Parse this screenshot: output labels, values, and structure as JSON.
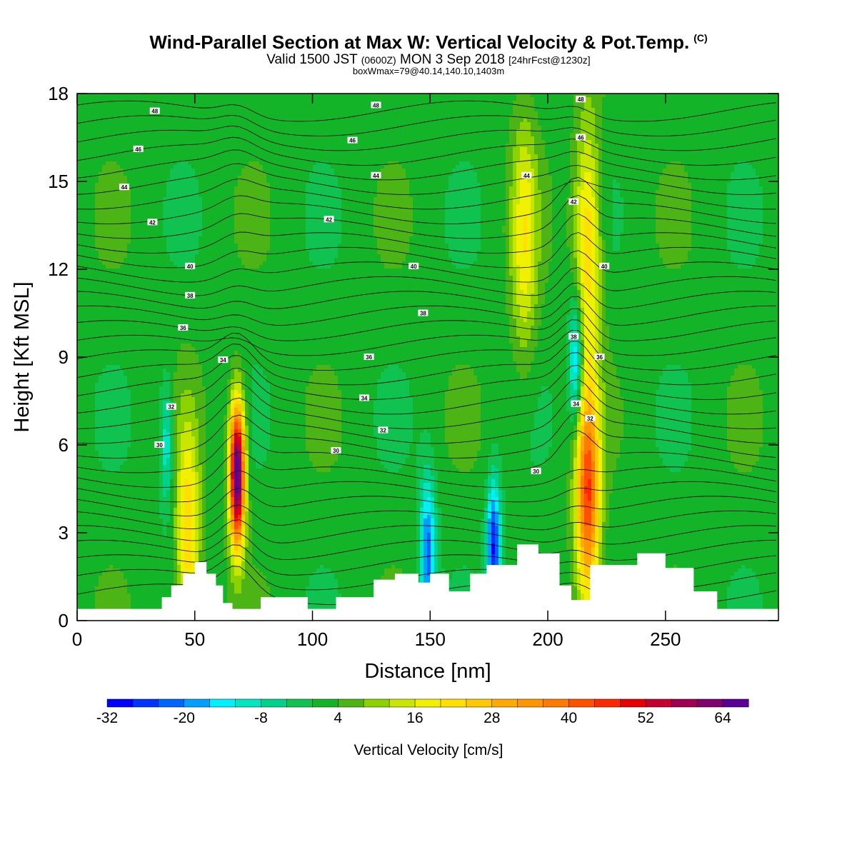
{
  "header": {
    "title": "Wind-Parallel Section at Max W: Vertical Velocity & Pot.Temp.",
    "copyright": "(C)",
    "valid_prefix": "Valid 1500 JST",
    "valid_utc": "(0600Z)",
    "valid_date": "MON 3 Sep 2018",
    "forecast": "[24hrFcst@1230z]",
    "box_info": "boxWmax=79@40.14,140.10,1403m"
  },
  "chart_data": {
    "type": "heatmap",
    "xlabel": "Distance [nm]",
    "ylabel": "Height [Kft MSL]",
    "xlim": [
      0,
      298
    ],
    "ylim": [
      0,
      18
    ],
    "x_ticks": [
      "0",
      "50",
      "100",
      "150",
      "200",
      "250"
    ],
    "y_ticks": [
      "0",
      "3",
      "6",
      "9",
      "12",
      "15",
      "18"
    ],
    "colorbar": {
      "label": "Vertical Velocity [cm/s]",
      "levels": [
        -32,
        -28,
        -24,
        -20,
        -16,
        -12,
        -8,
        -4,
        0,
        4,
        8,
        12,
        16,
        20,
        24,
        28,
        32,
        36,
        40,
        44,
        48,
        52,
        56,
        60,
        64,
        68
      ],
      "tick_labels": [
        "-32",
        "-20",
        "-8",
        "4",
        "16",
        "28",
        "40",
        "52",
        "64"
      ],
      "colors": [
        "#0000ff",
        "#0033ff",
        "#0066ff",
        "#00a0ff",
        "#00f0ff",
        "#00e6c0",
        "#00d28c",
        "#10c250",
        "#14b428",
        "#4cb414",
        "#8cd200",
        "#c8e600",
        "#f0f000",
        "#ffe000",
        "#ffc800",
        "#ffaa00",
        "#ff9600",
        "#ff7a00",
        "#ff5000",
        "#ff2800",
        "#e60000",
        "#c40030",
        "#a00050",
        "#80006e",
        "#5a0096"
      ]
    },
    "velocity_features": [
      {
        "x": 68,
        "y": 5.0,
        "w": 3.2,
        "peak": 72,
        "name": "main updraft"
      },
      {
        "x": 217,
        "y": 4.3,
        "w": 5.0,
        "peak": 44,
        "name": "updraft"
      },
      {
        "x": 217,
        "y": 13.0,
        "w": 5.5,
        "peak": 24
      },
      {
        "x": 190,
        "y": 13.0,
        "w": 5.5,
        "peak": 18
      },
      {
        "x": 47,
        "y": 2.8,
        "w": 5.0,
        "peak": 24
      },
      {
        "x": 177,
        "y": 2.5,
        "w": 3.0,
        "peak": -28
      },
      {
        "x": 149,
        "y": 2.3,
        "w": 3.5,
        "peak": -22
      },
      {
        "x": 212,
        "y": 8.8,
        "w": 3.0,
        "peak": -20
      },
      {
        "x": 38,
        "y": 6.0,
        "w": 3.0,
        "peak": -12
      }
    ],
    "isentropes_label_values": [
      "28",
      "30",
      "32",
      "34",
      "36",
      "38",
      "40",
      "42",
      "44",
      "46",
      "48"
    ],
    "terrain_heights_kft": [
      {
        "x": 0,
        "h": 0.4
      },
      {
        "x": 32,
        "h": 0.4
      },
      {
        "x": 36,
        "h": 0.8
      },
      {
        "x": 40,
        "h": 1.2
      },
      {
        "x": 45,
        "h": 1.6
      },
      {
        "x": 50,
        "h": 2.0
      },
      {
        "x": 55,
        "h": 1.6
      },
      {
        "x": 59,
        "h": 1.2
      },
      {
        "x": 62,
        "h": 0.6
      },
      {
        "x": 66,
        "h": 0.4
      },
      {
        "x": 78,
        "h": 0.8
      },
      {
        "x": 98,
        "h": 0.4
      },
      {
        "x": 110,
        "h": 0.8
      },
      {
        "x": 126,
        "h": 1.4
      },
      {
        "x": 135,
        "h": 1.6
      },
      {
        "x": 145,
        "h": 1.3
      },
      {
        "x": 150,
        "h": 1.6
      },
      {
        "x": 158,
        "h": 1.0
      },
      {
        "x": 167,
        "h": 1.6
      },
      {
        "x": 174,
        "h": 1.9
      },
      {
        "x": 187,
        "h": 2.6
      },
      {
        "x": 196,
        "h": 2.3
      },
      {
        "x": 205,
        "h": 1.2
      },
      {
        "x": 210,
        "h": 0.7
      },
      {
        "x": 218,
        "h": 1.9
      },
      {
        "x": 238,
        "h": 2.3
      },
      {
        "x": 250,
        "h": 1.8
      },
      {
        "x": 262,
        "h": 1.0
      },
      {
        "x": 272,
        "h": 0.4
      },
      {
        "x": 298,
        "h": 0.4
      }
    ]
  },
  "colors": {
    "background": "#ffffff",
    "base_field": "#14b428",
    "contour": "#000000"
  }
}
